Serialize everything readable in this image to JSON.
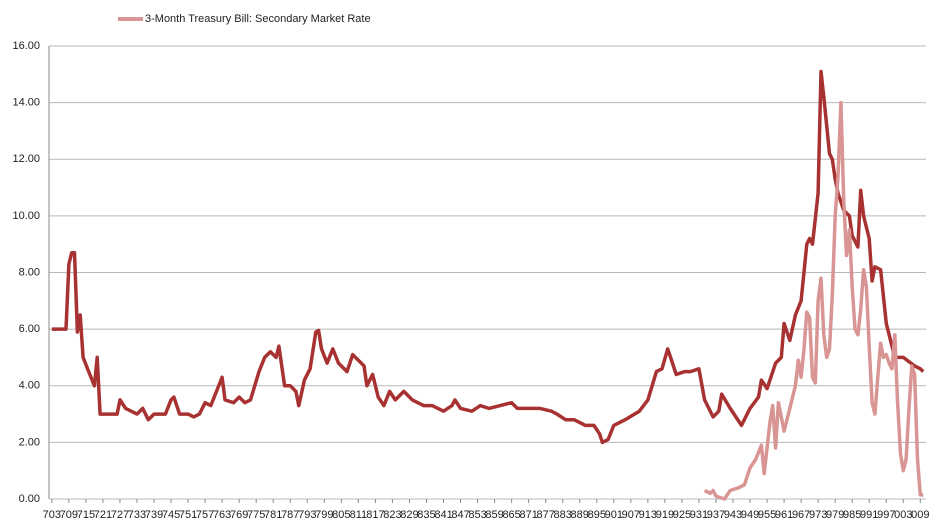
{
  "chart_data": {
    "type": "line",
    "xlim": [
      1702,
      2011
    ],
    "ylim": [
      0,
      16
    ],
    "yticks": [
      {
        "value": 0,
        "label": "0.00"
      },
      {
        "value": 2,
        "label": "2.00"
      },
      {
        "value": 4,
        "label": "4.00"
      },
      {
        "value": 6,
        "label": "6.00"
      },
      {
        "value": 8,
        "label": "8.00"
      },
      {
        "value": 10,
        "label": "10.00"
      },
      {
        "value": 12,
        "label": "12.00"
      },
      {
        "value": 14,
        "label": "14.00"
      },
      {
        "value": 16,
        "label": "16.00"
      }
    ],
    "xticks": [
      {
        "value": 1703,
        "label": "703"
      },
      {
        "value": 1709,
        "label": "709"
      },
      {
        "value": 1715,
        "label": "715"
      },
      {
        "value": 1721,
        "label": "721"
      },
      {
        "value": 1727,
        "label": "727"
      },
      {
        "value": 1733,
        "label": "733"
      },
      {
        "value": 1739,
        "label": "739"
      },
      {
        "value": 1745,
        "label": "745"
      },
      {
        "value": 1751,
        "label": "751"
      },
      {
        "value": 1757,
        "label": "757"
      },
      {
        "value": 1763,
        "label": "763"
      },
      {
        "value": 1769,
        "label": "769"
      },
      {
        "value": 1775,
        "label": "775"
      },
      {
        "value": 1781,
        "label": "781"
      },
      {
        "value": 1787,
        "label": "787"
      },
      {
        "value": 1793,
        "label": "793"
      },
      {
        "value": 1799,
        "label": "799"
      },
      {
        "value": 1805,
        "label": "805"
      },
      {
        "value": 1811,
        "label": "811"
      },
      {
        "value": 1817,
        "label": "817"
      },
      {
        "value": 1823,
        "label": "823"
      },
      {
        "value": 1829,
        "label": "829"
      },
      {
        "value": 1835,
        "label": "835"
      },
      {
        "value": 1841,
        "label": "841"
      },
      {
        "value": 1847,
        "label": "847"
      },
      {
        "value": 1853,
        "label": "853"
      },
      {
        "value": 1859,
        "label": "859"
      },
      {
        "value": 1865,
        "label": "865"
      },
      {
        "value": 1871,
        "label": "871"
      },
      {
        "value": 1877,
        "label": "877"
      },
      {
        "value": 1883,
        "label": "883"
      },
      {
        "value": 1889,
        "label": "889"
      },
      {
        "value": 1895,
        "label": "895"
      },
      {
        "value": 1901,
        "label": "901"
      },
      {
        "value": 1907,
        "label": "907"
      },
      {
        "value": 1913,
        "label": "913"
      },
      {
        "value": 1919,
        "label": "919"
      },
      {
        "value": 1925,
        "label": "925"
      },
      {
        "value": 1931,
        "label": "931"
      },
      {
        "value": 1937,
        "label": "937"
      },
      {
        "value": 1943,
        "label": "943"
      },
      {
        "value": 1949,
        "label": "949"
      },
      {
        "value": 1955,
        "label": "955"
      },
      {
        "value": 1961,
        "label": "961"
      },
      {
        "value": 1967,
        "label": "967"
      },
      {
        "value": 1973,
        "label": "973"
      },
      {
        "value": 1979,
        "label": "979"
      },
      {
        "value": 1985,
        "label": "985"
      },
      {
        "value": 1991,
        "label": "991"
      },
      {
        "value": 1997,
        "label": "997"
      },
      {
        "value": 2003,
        "label": "003"
      },
      {
        "value": 2009,
        "label": "009"
      }
    ],
    "grid": true,
    "series": [
      {
        "color": "#a83232",
        "x": [
          1703,
          1708,
          1709,
          1710,
          1711,
          1712,
          1713,
          1714,
          1716,
          1718,
          1719,
          1720,
          1722,
          1726,
          1727,
          1729,
          1733,
          1735,
          1737,
          1739,
          1743,
          1745,
          1746,
          1748,
          1751,
          1753,
          1755,
          1757,
          1759,
          1761,
          1763,
          1764,
          1767,
          1769,
          1771,
          1773,
          1776,
          1778,
          1780,
          1782,
          1783,
          1785,
          1787,
          1789,
          1790,
          1792,
          1794,
          1796,
          1797,
          1798,
          1800,
          1802,
          1804,
          1807,
          1809,
          1811,
          1813,
          1814,
          1816,
          1818,
          1820,
          1822,
          1824,
          1827,
          1830,
          1834,
          1837,
          1841,
          1844,
          1845,
          1847,
          1851,
          1854,
          1857,
          1861,
          1865,
          1867,
          1871,
          1875,
          1879,
          1881,
          1884,
          1887,
          1891,
          1894,
          1896,
          1897,
          1899,
          1901,
          1905,
          1910,
          1913,
          1916,
          1918,
          1920,
          1921,
          1923,
          1926,
          1928,
          1931,
          1933,
          1936,
          1938,
          1939,
          1942,
          1946,
          1949,
          1952,
          1953,
          1955,
          1958,
          1960,
          1961,
          1963,
          1965,
          1967,
          1969,
          1970,
          1971,
          1973,
          1974,
          1975,
          1977,
          1978,
          1979,
          1980,
          1982,
          1984,
          1985,
          1987,
          1988,
          1989,
          1991,
          1992,
          1993,
          1995,
          1997,
          2000,
          2003,
          2007,
          2009,
          2010
        ],
        "values": [
          6.0,
          6.0,
          8.3,
          8.7,
          8.7,
          5.9,
          6.5,
          5.0,
          4.5,
          4.0,
          5.0,
          3.0,
          3.0,
          3.0,
          3.5,
          3.2,
          3.0,
          3.2,
          2.8,
          3.0,
          3.0,
          3.5,
          3.6,
          3.0,
          3.0,
          2.9,
          3.0,
          3.4,
          3.3,
          3.8,
          4.3,
          3.5,
          3.4,
          3.6,
          3.4,
          3.5,
          4.5,
          5.0,
          5.2,
          5.0,
          5.4,
          4.0,
          4.0,
          3.8,
          3.3,
          4.2,
          4.6,
          5.9,
          5.95,
          5.3,
          4.8,
          5.3,
          4.8,
          4.5,
          5.1,
          4.9,
          4.7,
          4.0,
          4.4,
          3.6,
          3.3,
          3.8,
          3.5,
          3.8,
          3.5,
          3.3,
          3.3,
          3.1,
          3.3,
          3.5,
          3.2,
          3.1,
          3.3,
          3.2,
          3.3,
          3.4,
          3.2,
          3.2,
          3.2,
          3.1,
          3.0,
          2.8,
          2.8,
          2.6,
          2.6,
          2.3,
          2.0,
          2.1,
          2.6,
          2.8,
          3.1,
          3.5,
          4.5,
          4.6,
          5.3,
          5.0,
          4.4,
          4.5,
          4.5,
          4.6,
          3.5,
          2.9,
          3.1,
          3.7,
          3.2,
          2.6,
          3.2,
          3.6,
          4.2,
          3.9,
          4.8,
          5.0,
          6.2,
          5.6,
          6.5,
          7.0,
          9.0,
          9.2,
          9.0,
          10.8,
          15.1,
          14.2,
          12.2,
          12.0,
          11.3,
          10.8,
          10.2,
          10.0,
          9.3,
          8.9,
          10.9,
          10.0,
          9.2,
          7.7,
          8.2,
          8.1,
          6.2,
          5.0,
          5.0,
          4.7,
          4.6,
          4.5
        ]
      },
      {
        "name": "3-Month Treasury Bill: Secondary Market Rate",
        "color": "#d99494",
        "x": [
          1933,
          1935,
          1936,
          1937,
          1940,
          1942,
          1945,
          1947,
          1949,
          1951,
          1953,
          1954,
          1956,
          1957,
          1958,
          1959,
          1960,
          1961,
          1963,
          1965,
          1966,
          1967,
          1968,
          1969,
          1970,
          1971,
          1972,
          1973,
          1974,
          1975,
          1976,
          1977,
          1978,
          1979,
          1980,
          1981,
          1982,
          1983,
          1984,
          1985,
          1986,
          1987,
          1988,
          1989,
          1990,
          1991,
          1992,
          1993,
          1994,
          1995,
          1996,
          1997,
          1998,
          1999,
          2000,
          2001,
          2002,
          2003,
          2004,
          2005,
          2006,
          2007,
          2008,
          2009,
          2010
        ],
        "values": [
          0.3,
          0.2,
          0.3,
          0.1,
          0.0,
          0.3,
          0.4,
          0.5,
          1.1,
          1.4,
          1.9,
          0.9,
          2.7,
          3.3,
          1.8,
          3.4,
          2.9,
          2.4,
          3.2,
          4.0,
          4.9,
          4.3,
          5.3,
          6.6,
          6.4,
          4.3,
          4.1,
          7.0,
          7.8,
          5.8,
          5.0,
          5.3,
          7.2,
          10.0,
          11.4,
          14.0,
          10.6,
          8.6,
          9.5,
          7.5,
          6.0,
          5.8,
          6.7,
          8.1,
          7.5,
          5.4,
          3.4,
          3.0,
          4.3,
          5.5,
          5.0,
          5.1,
          4.8,
          4.6,
          5.8,
          3.4,
          1.6,
          1.0,
          1.4,
          3.2,
          4.7,
          4.4,
          1.4,
          0.15,
          0.14
        ]
      }
    ]
  }
}
